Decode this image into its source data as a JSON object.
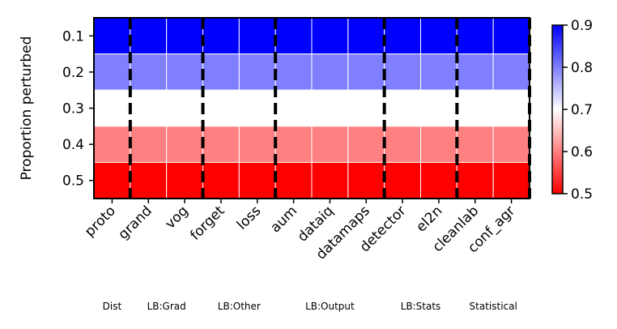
{
  "chart_data": {
    "type": "heatmap",
    "title": "",
    "xlabel": "",
    "ylabel": "Proportion perturbed",
    "categories": [
      "proto",
      "grand",
      "vog",
      "forget",
      "loss",
      "aum",
      "dataiq",
      "datamaps",
      "detector",
      "el2n",
      "cleanlab",
      "conf_agr"
    ],
    "y": [
      "0.1",
      "0.2",
      "0.3",
      "0.4",
      "0.5"
    ],
    "values": [
      [
        0.9,
        0.9,
        0.9,
        0.9,
        0.9,
        0.9,
        0.9,
        0.9,
        0.9,
        0.9,
        0.9,
        0.9
      ],
      [
        0.8,
        0.8,
        0.8,
        0.8,
        0.8,
        0.8,
        0.8,
        0.8,
        0.8,
        0.8,
        0.8,
        0.8
      ],
      [
        0.7,
        0.7,
        0.7,
        0.7,
        0.7,
        0.7,
        0.7,
        0.7,
        0.7,
        0.7,
        0.7,
        0.7
      ],
      [
        0.6,
        0.6,
        0.6,
        0.6,
        0.6,
        0.6,
        0.6,
        0.6,
        0.6,
        0.6,
        0.6,
        0.6
      ],
      [
        0.5,
        0.5,
        0.5,
        0.5,
        0.5,
        0.5,
        0.5,
        0.5,
        0.5,
        0.5,
        0.5,
        0.5
      ]
    ],
    "groups": [
      {
        "label": "Dist",
        "start": 0,
        "end": 0
      },
      {
        "label": "LB:Grad",
        "start": 1,
        "end": 2
      },
      {
        "label": "LB:Other",
        "start": 3,
        "end": 4
      },
      {
        "label": "LB:Output",
        "start": 5,
        "end": 7
      },
      {
        "label": "LB:Stats",
        "start": 8,
        "end": 9
      },
      {
        "label": "Statistical",
        "start": 10,
        "end": 11
      }
    ],
    "colorbar": {
      "range": [
        0.5,
        0.9
      ],
      "ticks": [
        "0.5",
        "0.6",
        "0.7",
        "0.8",
        "0.9"
      ],
      "colormap": "bwr_r",
      "low_color": "#ff0000",
      "mid_color": "#ffffff",
      "high_color": "#0000ff"
    }
  }
}
